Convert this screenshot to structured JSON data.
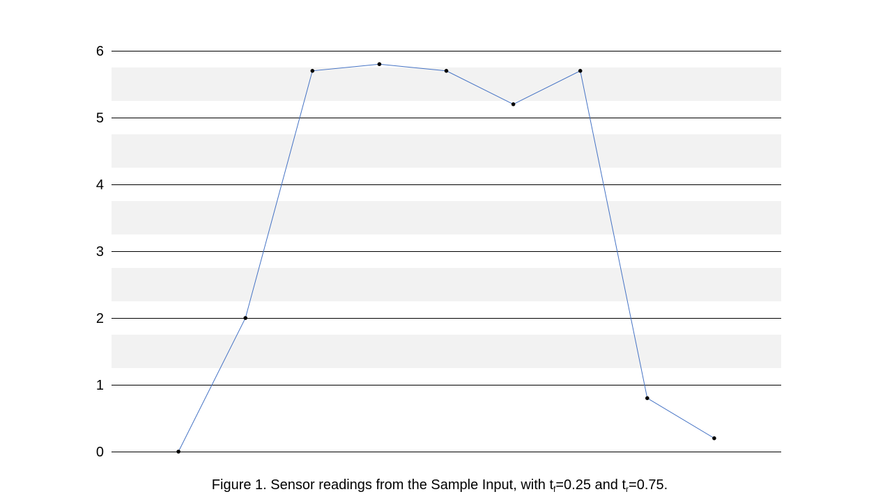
{
  "chart_data": {
    "type": "line",
    "title": "",
    "xlabel": "",
    "ylabel": "",
    "x": [
      1,
      2,
      3,
      4,
      5,
      6,
      7,
      8,
      9
    ],
    "series": [
      {
        "values": [
          0,
          2,
          5.7,
          5.8,
          5.7,
          5.2,
          5.7,
          0.8,
          0.2
        ],
        "color": "#4472c4",
        "marker_color": "#000000"
      }
    ],
    "ylim": [
      0,
      6
    ],
    "xlim": [
      0,
      10
    ],
    "yticks": [
      "0",
      "1",
      "2",
      "3",
      "4",
      "5",
      "6"
    ],
    "grid": true,
    "grid_color": "#000000",
    "shaded_bands": [
      {
        "from": 1.25,
        "to": 1.75
      },
      {
        "from": 2.25,
        "to": 2.75
      },
      {
        "from": 3.25,
        "to": 3.75
      },
      {
        "from": 4.25,
        "to": 4.75
      },
      {
        "from": 5.25,
        "to": 5.75
      }
    ],
    "band_color": "#f2f2f2"
  },
  "caption": {
    "prefix": "Figure 1.  Sensor readings from the Sample Input, with t",
    "sub1": "f",
    "middle": "=0.25 and t",
    "sub2": "r",
    "suffix": "=0.75."
  }
}
